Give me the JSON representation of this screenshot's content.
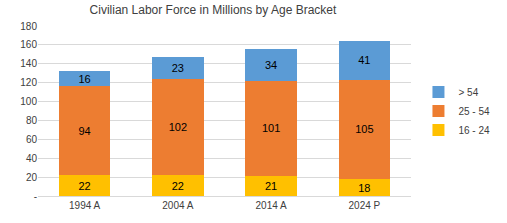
{
  "chart_data": {
    "type": "bar",
    "title": "Civilian Labor Force in Millions by Age Bracket",
    "categories": [
      "1994 A",
      "2004 A",
      "2014 A",
      "2024 P"
    ],
    "series": [
      {
        "name": "16 - 24",
        "color": "#FFC000",
        "values": [
          22,
          22,
          21,
          18
        ]
      },
      {
        "name": "25 - 54",
        "color": "#ED7D31",
        "values": [
          94,
          102,
          101,
          105
        ]
      },
      {
        "name": "> 54",
        "color": "#5B9BD5",
        "values": [
          16,
          23,
          34,
          41
        ]
      }
    ],
    "stacked": true,
    "data_labels": true,
    "ylim": [
      0,
      180
    ],
    "yticks": [
      {
        "value": 0,
        "label": "-"
      },
      20,
      40,
      60,
      80,
      100,
      120,
      140,
      160,
      180
    ],
    "grid": true,
    "legend": "right"
  }
}
